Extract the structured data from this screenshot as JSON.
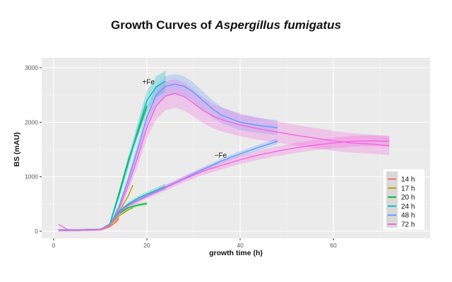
{
  "title_plain": "Growth Curves of ",
  "title_italic": "Aspergillus fumigatus",
  "chart_data": {
    "type": "line",
    "title": "Growth Curves of Aspergillus fumigatus",
    "xlabel": "growth time (h)",
    "ylabel": "BS (mAU)",
    "xlim": [
      -2,
      74
    ],
    "ylim": [
      -150,
      3200
    ],
    "xticks": [
      0,
      20,
      40,
      60
    ],
    "yticks": [
      0,
      1000,
      2000,
      3000
    ],
    "grid": true,
    "legend_position": "right-inside-bottom",
    "annotations": [
      {
        "text": "+Fe",
        "x": 19,
        "y": 2700
      },
      {
        "text": "−Fe",
        "x": 34.5,
        "y": 1350
      }
    ],
    "series": [
      {
        "name": "14 h",
        "color": "#F8766D",
        "condition": "+Fe",
        "x": [
          1,
          5,
          10,
          12,
          13,
          14
        ],
        "y": [
          20,
          20,
          30,
          80,
          150,
          250
        ],
        "band": 0
      },
      {
        "name": "17 h",
        "color": "#B79F00",
        "condition": "+Fe",
        "x": [
          1,
          5,
          10,
          12,
          14,
          16,
          17
        ],
        "y": [
          20,
          20,
          30,
          100,
          350,
          650,
          850
        ],
        "band": 0
      },
      {
        "name": "20 h",
        "color": "#00BA38",
        "condition": "+Fe",
        "x": [
          1,
          5,
          10,
          12,
          14,
          16,
          18,
          20
        ],
        "y": [
          20,
          20,
          30,
          120,
          700,
          1300,
          1800,
          2300
        ],
        "band": 80
      },
      {
        "name": "24 h",
        "color": "#00BFC4",
        "condition": "+Fe",
        "x": [
          1,
          5,
          10,
          12,
          14,
          16,
          18,
          20,
          22,
          24
        ],
        "y": [
          20,
          20,
          30,
          120,
          650,
          1250,
          1850,
          2400,
          2650,
          2750
        ],
        "band": 180
      },
      {
        "name": "48 h",
        "color": "#619CFF",
        "condition": "+Fe",
        "x": [
          1,
          5,
          10,
          12,
          14,
          16,
          18,
          20,
          22,
          24,
          26,
          28,
          30,
          32,
          34,
          36,
          40,
          44,
          48
        ],
        "y": [
          20,
          20,
          30,
          100,
          450,
          950,
          1500,
          2100,
          2500,
          2660,
          2700,
          2660,
          2550,
          2400,
          2250,
          2130,
          2000,
          1940,
          1900
        ],
        "band": 170
      },
      {
        "name": "72 h",
        "color": "#F564E3",
        "condition": "+Fe",
        "x": [
          1,
          3,
          5,
          10,
          12,
          14,
          16,
          18,
          20,
          22,
          24,
          26,
          28,
          30,
          32,
          34,
          36,
          40,
          44,
          48,
          52,
          56,
          60,
          64,
          68,
          72
        ],
        "y": [
          20,
          20,
          20,
          30,
          90,
          400,
          850,
          1350,
          1900,
          2300,
          2480,
          2530,
          2470,
          2350,
          2220,
          2120,
          2050,
          1950,
          1880,
          1820,
          1760,
          1710,
          1660,
          1620,
          1600,
          1570
        ],
        "band": 240
      },
      {
        "name": "14 h",
        "color": "#F8766D",
        "condition": "-Fe",
        "x": [
          1,
          5,
          10,
          12,
          13,
          14
        ],
        "y": [
          20,
          20,
          30,
          80,
          140,
          220
        ],
        "band": 0
      },
      {
        "name": "17 h",
        "color": "#B79F00",
        "condition": "-Fe",
        "x": [
          1,
          5,
          10,
          12,
          14,
          16,
          17
        ],
        "y": [
          20,
          20,
          30,
          100,
          280,
          390,
          430
        ],
        "band": 0
      },
      {
        "name": "20 h",
        "color": "#00BA38",
        "condition": "-Fe",
        "x": [
          1,
          5,
          10,
          12,
          14,
          16,
          18,
          20
        ],
        "y": [
          20,
          20,
          30,
          120,
          320,
          430,
          480,
          510
        ],
        "band": 30
      },
      {
        "name": "24 h",
        "color": "#00BFC4",
        "condition": "-Fe",
        "x": [
          1,
          5,
          10,
          12,
          14,
          16,
          18,
          20,
          22,
          24
        ],
        "y": [
          20,
          20,
          30,
          130,
          360,
          500,
          600,
          680,
          750,
          820
        ],
        "band": 50
      },
      {
        "name": "48 h",
        "color": "#619CFF",
        "condition": "-Fe",
        "x": [
          1,
          5,
          10,
          12,
          14,
          16,
          20,
          24,
          28,
          32,
          36,
          40,
          44,
          48
        ],
        "y": [
          20,
          20,
          30,
          120,
          340,
          480,
          650,
          810,
          970,
          1130,
          1290,
          1420,
          1540,
          1650
        ],
        "band": 50
      },
      {
        "name": "72 h",
        "color": "#F564E3",
        "condition": "-Fe",
        "x": [
          1,
          3,
          5,
          10,
          12,
          14,
          16,
          20,
          24,
          28,
          32,
          36,
          40,
          44,
          48,
          52,
          56,
          60,
          64,
          68,
          72
        ],
        "y": [
          20,
          20,
          20,
          30,
          110,
          330,
          470,
          640,
          800,
          960,
          1100,
          1210,
          1310,
          1400,
          1470,
          1530,
          1580,
          1620,
          1650,
          1660,
          1650
        ],
        "band": 90
      },
      {
        "name": "72 h spike",
        "color": "#F564E3",
        "condition": "",
        "x": [
          1,
          3
        ],
        "y": [
          130,
          30
        ],
        "band": 0
      }
    ]
  },
  "legend": {
    "items": [
      {
        "label": "14 h",
        "color": "#F8766D"
      },
      {
        "label": "17 h",
        "color": "#B79F00"
      },
      {
        "label": "20 h",
        "color": "#00BA38"
      },
      {
        "label": "24 h",
        "color": "#00BFC4"
      },
      {
        "label": "48 h",
        "color": "#619CFF"
      },
      {
        "label": "72 h",
        "color": "#F564E3"
      }
    ]
  }
}
